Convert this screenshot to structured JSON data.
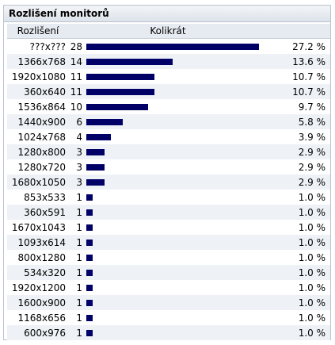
{
  "panel": {
    "title": "Rozlišení monitorů",
    "bar_color": "#000066"
  },
  "table": {
    "headers": {
      "resolution": "Rozlišení",
      "count": "Kolikrát"
    },
    "rows": [
      {
        "resolution": "???x???",
        "count": "28",
        "percent": "27.2 %",
        "fraction": 0.272
      },
      {
        "resolution": "1366x768",
        "count": "14",
        "percent": "13.6 %",
        "fraction": 0.136
      },
      {
        "resolution": "1920x1080",
        "count": "11",
        "percent": "10.7 %",
        "fraction": 0.107
      },
      {
        "resolution": "360x640",
        "count": "11",
        "percent": "10.7 %",
        "fraction": 0.107
      },
      {
        "resolution": "1536x864",
        "count": "10",
        "percent": "9.7 %",
        "fraction": 0.097
      },
      {
        "resolution": "1440x900",
        "count": "6",
        "percent": "5.8 %",
        "fraction": 0.058
      },
      {
        "resolution": "1024x768",
        "count": "4",
        "percent": "3.9 %",
        "fraction": 0.039
      },
      {
        "resolution": "1280x800",
        "count": "3",
        "percent": "2.9 %",
        "fraction": 0.029
      },
      {
        "resolution": "1280x720",
        "count": "3",
        "percent": "2.9 %",
        "fraction": 0.029
      },
      {
        "resolution": "1680x1050",
        "count": "3",
        "percent": "2.9 %",
        "fraction": 0.029
      },
      {
        "resolution": "853x533",
        "count": "1",
        "percent": "1.0 %",
        "fraction": 0.01
      },
      {
        "resolution": "360x591",
        "count": "1",
        "percent": "1.0 %",
        "fraction": 0.01
      },
      {
        "resolution": "1670x1043",
        "count": "1",
        "percent": "1.0 %",
        "fraction": 0.01
      },
      {
        "resolution": "1093x614",
        "count": "1",
        "percent": "1.0 %",
        "fraction": 0.01
      },
      {
        "resolution": "800x1280",
        "count": "1",
        "percent": "1.0 %",
        "fraction": 0.01
      },
      {
        "resolution": "534x320",
        "count": "1",
        "percent": "1.0 %",
        "fraction": 0.01
      },
      {
        "resolution": "1920x1200",
        "count": "1",
        "percent": "1.0 %",
        "fraction": 0.01
      },
      {
        "resolution": "1600x900",
        "count": "1",
        "percent": "1.0 %",
        "fraction": 0.01
      },
      {
        "resolution": "1168x656",
        "count": "1",
        "percent": "1.0 %",
        "fraction": 0.01
      },
      {
        "resolution": "600x976",
        "count": "1",
        "percent": "1.0 %",
        "fraction": 0.01
      }
    ]
  }
}
